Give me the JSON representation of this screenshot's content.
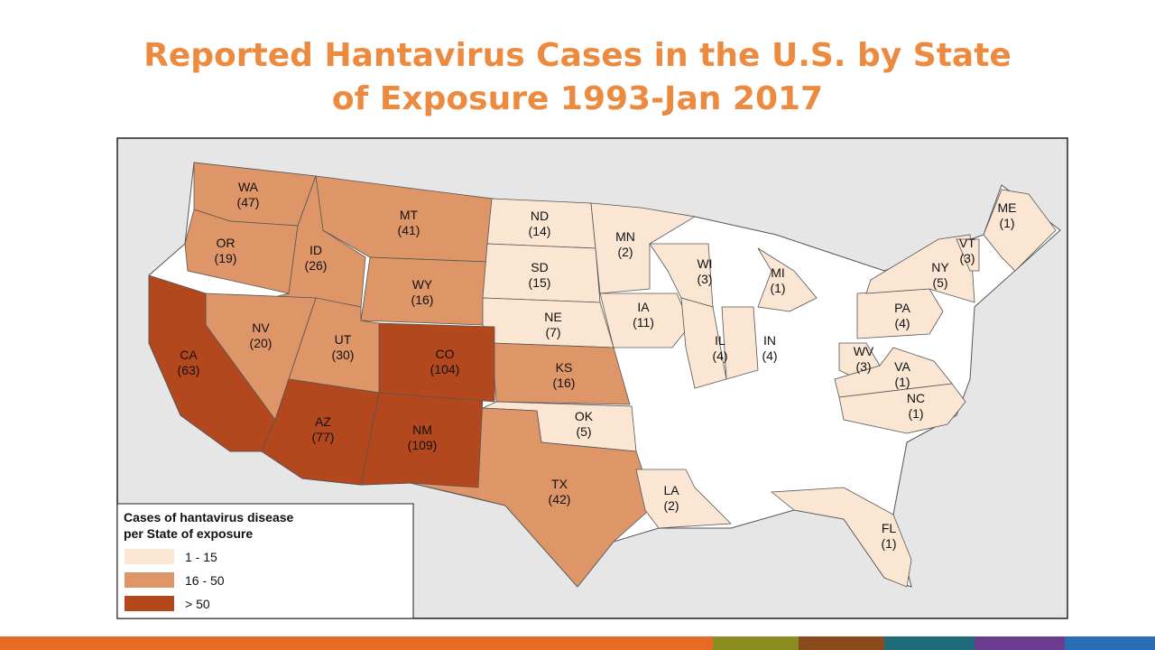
{
  "title": "Reported Hantavirus Cases in the U.S. by State of Exposure 1993-Jan 2017",
  "legend": {
    "title": "Cases of hantavirus disease per State of exposure",
    "items": [
      {
        "label": "1 - 15",
        "color": "#fbe6d4"
      },
      {
        "label": "16 - 50",
        "color": "#de9567"
      },
      {
        "label": "> 50",
        "color": "#b3471e"
      }
    ]
  },
  "states": [
    {
      "abbr": "WA",
      "count_label": "(47)",
      "color": "#de9567"
    },
    {
      "abbr": "OR",
      "count_label": "(19)",
      "color": "#de9567"
    },
    {
      "abbr": "ID",
      "count_label": "(26)",
      "color": "#de9567"
    },
    {
      "abbr": "MT",
      "count_label": "(41)",
      "color": "#de9567"
    },
    {
      "abbr": "WY",
      "count_label": "(16)",
      "color": "#de9567"
    },
    {
      "abbr": "ND",
      "count_label": "(14)",
      "color": "#fbe6d4"
    },
    {
      "abbr": "SD",
      "count_label": "(15)",
      "color": "#fbe6d4"
    },
    {
      "abbr": "NE",
      "count_label": "(7)",
      "color": "#fbe6d4"
    },
    {
      "abbr": "KS",
      "count_label": "(16)",
      "color": "#de9567"
    },
    {
      "abbr": "OK",
      "count_label": "(5)",
      "color": "#fbe6d4"
    },
    {
      "abbr": "TX",
      "count_label": "(42)",
      "color": "#de9567"
    },
    {
      "abbr": "NM",
      "count_label": "(109)",
      "color": "#b3471e"
    },
    {
      "abbr": "CO",
      "count_label": "(104)",
      "color": "#b3471e"
    },
    {
      "abbr": "UT",
      "count_label": "(30)",
      "color": "#de9567"
    },
    {
      "abbr": "NV",
      "count_label": "(20)",
      "color": "#de9567"
    },
    {
      "abbr": "AZ",
      "count_label": "(77)",
      "color": "#b3471e"
    },
    {
      "abbr": "CA",
      "count_label": "(63)",
      "color": "#b3471e"
    },
    {
      "abbr": "MN",
      "count_label": "(2)",
      "color": "#fbe6d4"
    },
    {
      "abbr": "IA",
      "count_label": "(11)",
      "color": "#fbe6d4"
    },
    {
      "abbr": "WI",
      "count_label": "(3)",
      "color": "#fbe6d4"
    },
    {
      "abbr": "IL",
      "count_label": "(4)",
      "color": "#fbe6d4"
    },
    {
      "abbr": "IN",
      "count_label": "(4)",
      "color": "#fbe6d4"
    },
    {
      "abbr": "MI",
      "count_label": "(1)",
      "color": "#fbe6d4"
    },
    {
      "abbr": "LA",
      "count_label": "(2)",
      "color": "#fbe6d4"
    },
    {
      "abbr": "FL",
      "count_label": "(1)",
      "color": "#fbe6d4"
    },
    {
      "abbr": "WV",
      "count_label": "(3)",
      "color": "#fbe6d4"
    },
    {
      "abbr": "VA",
      "count_label": "(1)",
      "color": "#fbe6d4"
    },
    {
      "abbr": "NC",
      "count_label": "(1)",
      "color": "#fbe6d4"
    },
    {
      "abbr": "PA",
      "count_label": "(4)",
      "color": "#fbe6d4"
    },
    {
      "abbr": "NY",
      "count_label": "(5)",
      "color": "#fbe6d4"
    },
    {
      "abbr": "VT",
      "count_label": "(3)",
      "color": "#fbe6d4"
    },
    {
      "abbr": "ME",
      "count_label": "(1)",
      "color": "#fbe6d4"
    }
  ]
}
